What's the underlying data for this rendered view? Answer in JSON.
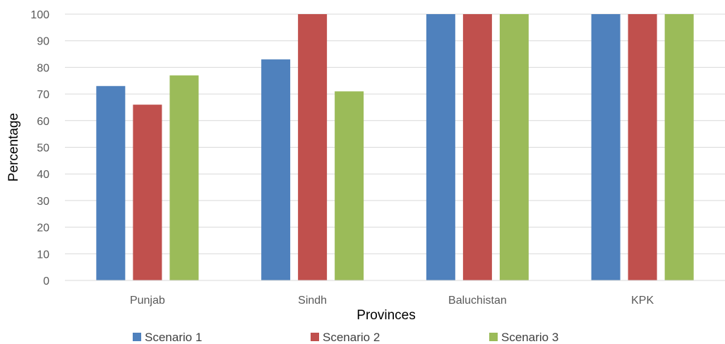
{
  "chart_data": {
    "type": "bar",
    "categories": [
      "Punjab",
      "Sindh",
      "Baluchistan",
      "KPK"
    ],
    "series": [
      {
        "name": "Scenario 1",
        "color": "#4f81bd",
        "values": [
          73,
          83,
          100,
          100
        ]
      },
      {
        "name": "Scenario 2",
        "color": "#c0504d",
        "values": [
          66,
          100,
          100,
          100
        ]
      },
      {
        "name": "Scenario 3",
        "color": "#9bbb59",
        "values": [
          77,
          71,
          100,
          100
        ]
      }
    ],
    "xlabel": "Provinces",
    "ylabel": "Percentage",
    "ylim": [
      0,
      100
    ],
    "yticks": [
      0,
      10,
      20,
      30,
      40,
      50,
      60,
      70,
      80,
      90,
      100
    ],
    "grid": true,
    "legend_position": "bottom"
  }
}
